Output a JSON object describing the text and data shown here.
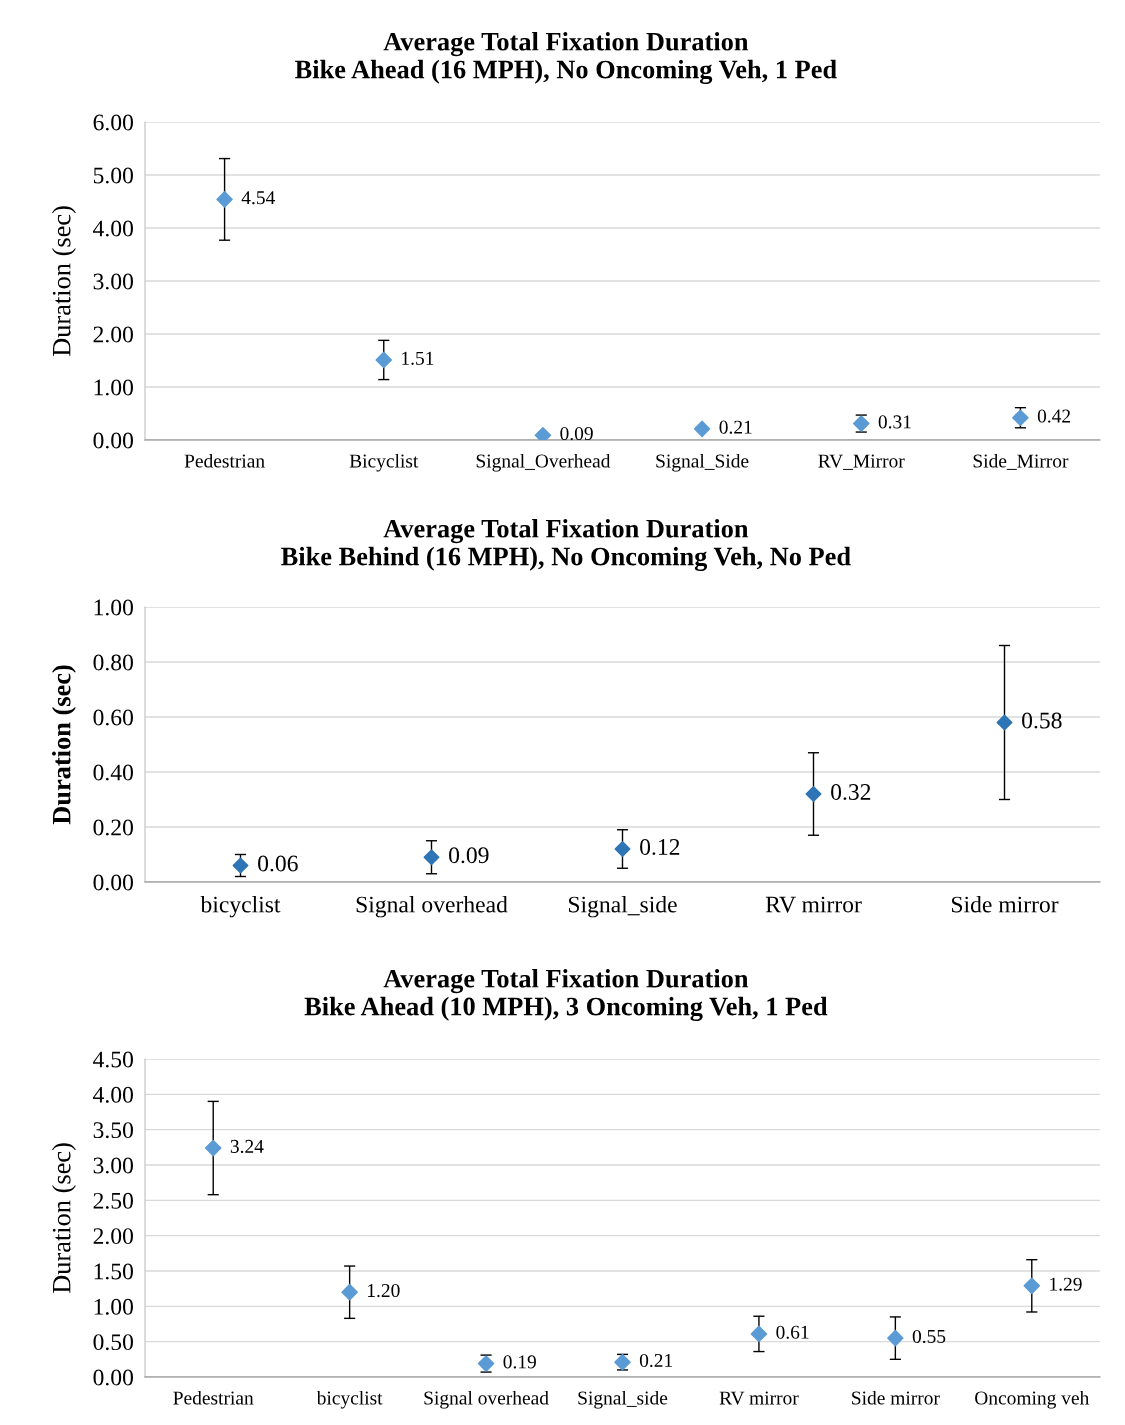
{
  "chart_data": [
    {
      "type": "scatter",
      "title": "Average Total Fixation Duration\nBike Ahead (16 MPH), No Oncoming Veh, 1 Ped",
      "ylabel": "Duration (sec)",
      "categories": [
        "Pedestrian",
        "Bicyclist",
        "Signal_Overhead",
        "Signal_Side",
        "RV_Mirror",
        "Side_Mirror"
      ],
      "values": [
        4.54,
        1.51,
        0.09,
        0.21,
        0.31,
        0.42
      ],
      "errors": [
        0.77,
        0.37,
        null,
        null,
        0.16,
        0.19
      ],
      "value_labels": [
        "4.54",
        "1.51",
        "0.09",
        "0.21",
        "0.31",
        "0.42"
      ],
      "color": "#5b9bd5",
      "marker": "diamond",
      "ylim": [
        0,
        6
      ],
      "yticks": [
        {
          "value": 0,
          "label": "0.00"
        },
        {
          "value": 1,
          "label": "1.00"
        },
        {
          "value": 2,
          "label": "2.00"
        },
        {
          "value": 3,
          "label": "3.00"
        },
        {
          "value": 4,
          "label": "4.00"
        },
        {
          "value": 5,
          "label": "5.00"
        },
        {
          "value": 6,
          "label": "6.00"
        }
      ],
      "grid": "y"
    },
    {
      "type": "scatter",
      "title": "Average Total Fixation Duration\nBike Behind (16 MPH), No Oncoming Veh, No Ped",
      "ylabel": "Duration (sec)",
      "categories": [
        "bicyclist",
        "Signal overhead",
        "Signal_side",
        "RV mirror",
        "Side mirror"
      ],
      "values": [
        0.06,
        0.09,
        0.12,
        0.32,
        0.58
      ],
      "errors": [
        0.04,
        0.06,
        0.07,
        0.15,
        0.28
      ],
      "value_labels": [
        "0.06",
        "0.09",
        "0.12",
        "0.32",
        "0.58"
      ],
      "color": "#2e75b6",
      "marker": "diamond",
      "ylim": [
        0,
        1
      ],
      "yticks": [
        {
          "value": 0,
          "label": "0.00"
        },
        {
          "value": 0.2,
          "label": "0.20"
        },
        {
          "value": 0.4,
          "label": "0.40"
        },
        {
          "value": 0.6,
          "label": "0.60"
        },
        {
          "value": 0.8,
          "label": "0.80"
        },
        {
          "value": 1,
          "label": "1.00"
        }
      ],
      "grid": "y"
    },
    {
      "type": "scatter",
      "title": "Average Total Fixation Duration\nBike Ahead (10 MPH), 3 Oncoming Veh, 1 Ped",
      "ylabel": "Duration (sec)",
      "categories": [
        "Pedestrian",
        "bicyclist",
        "Signal overhead",
        "Signal_side",
        "RV mirror",
        "Side mirror",
        "Oncoming veh"
      ],
      "values": [
        3.24,
        1.2,
        0.19,
        0.21,
        0.61,
        0.55,
        1.29
      ],
      "errors": [
        0.66,
        0.37,
        0.12,
        0.11,
        0.25,
        0.3,
        0.37
      ],
      "value_labels": [
        "3.24",
        "1.20",
        "0.19",
        "0.21",
        "0.61",
        "0.55",
        "1.29"
      ],
      "color": "#5b9bd5",
      "marker": "diamond",
      "ylim": [
        0,
        4.5
      ],
      "yticks": [
        {
          "value": 0,
          "label": "0.00"
        },
        {
          "value": 0.5,
          "label": "0.50"
        },
        {
          "value": 1,
          "label": "1.00"
        },
        {
          "value": 1.5,
          "label": "1.50"
        },
        {
          "value": 2,
          "label": "2.00"
        },
        {
          "value": 2.5,
          "label": "2.50"
        },
        {
          "value": 3,
          "label": "3.00"
        },
        {
          "value": 3.5,
          "label": "3.50"
        },
        {
          "value": 4,
          "label": "4.00"
        },
        {
          "value": 4.5,
          "label": "4.50"
        }
      ],
      "grid": "y"
    }
  ]
}
